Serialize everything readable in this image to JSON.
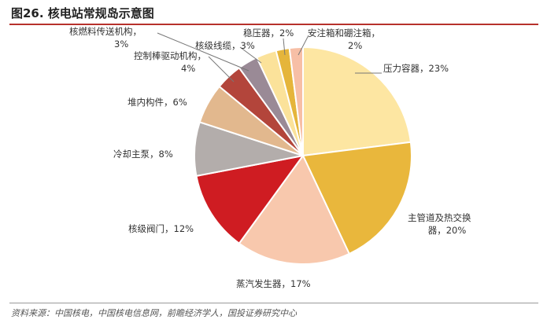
{
  "header": {
    "title": "图26. 核电站常规岛示意图"
  },
  "footer": {
    "source": "资料来源：中国核电，中国核电信息网，前瞻经济学人，国投证券研究中心"
  },
  "chart_data": {
    "type": "pie",
    "start_angle_deg": 0,
    "direction": "clockwise",
    "slices": [
      {
        "label": "压力容器",
        "value": 23,
        "value_text": "23%",
        "color": "#fde6a2",
        "label_lines": [
          "压力容器，23%"
        ]
      },
      {
        "label": "主管道及热交换器",
        "value": 20,
        "value_text": "20%",
        "color": "#e9b73c",
        "label_lines": [
          "主管道及热交换",
          "器，20%"
        ]
      },
      {
        "label": "蒸汽发生器",
        "value": 17,
        "value_text": "17%",
        "color": "#f8c8ad",
        "label_lines": [
          "蒸汽发生器，17%"
        ]
      },
      {
        "label": "核级阀门",
        "value": 12,
        "value_text": "12%",
        "color": "#cf1c22",
        "label_lines": [
          "核级阀门，12%"
        ]
      },
      {
        "label": "冷却主泵",
        "value": 8,
        "value_text": "8%",
        "color": "#b3adab",
        "label_lines": [
          "冷却主泵，8%"
        ]
      },
      {
        "label": "堆内构件",
        "value": 6,
        "value_text": "6%",
        "color": "#e2b88e",
        "label_lines": [
          "堆内构件，6%"
        ]
      },
      {
        "label": "控制棒驱动机构",
        "value": 4,
        "value_text": "4%",
        "color": "#b3453b",
        "label_lines": [
          "控制棒驱动机构，",
          "4%"
        ]
      },
      {
        "label": "核燃料传送机构",
        "value": 3,
        "value_text": "3%",
        "color": "#9a8a96",
        "label_lines": [
          "核燃料传送机构，",
          "3%"
        ]
      },
      {
        "label": "核级线缆",
        "value": 3,
        "value_text": "3%",
        "color": "#fbe29a",
        "label_lines": [
          "核级线缆，3%"
        ]
      },
      {
        "label": "稳压器",
        "value": 2,
        "value_text": "2%",
        "color": "#e5b53b",
        "label_lines": [
          "稳压器，2%"
        ]
      },
      {
        "label": "安注箱和硼注箱",
        "value": 2,
        "value_text": "2%",
        "color": "#f7bfa6",
        "label_lines": [
          "安注箱和硼注箱，",
          "2%"
        ]
      }
    ]
  }
}
